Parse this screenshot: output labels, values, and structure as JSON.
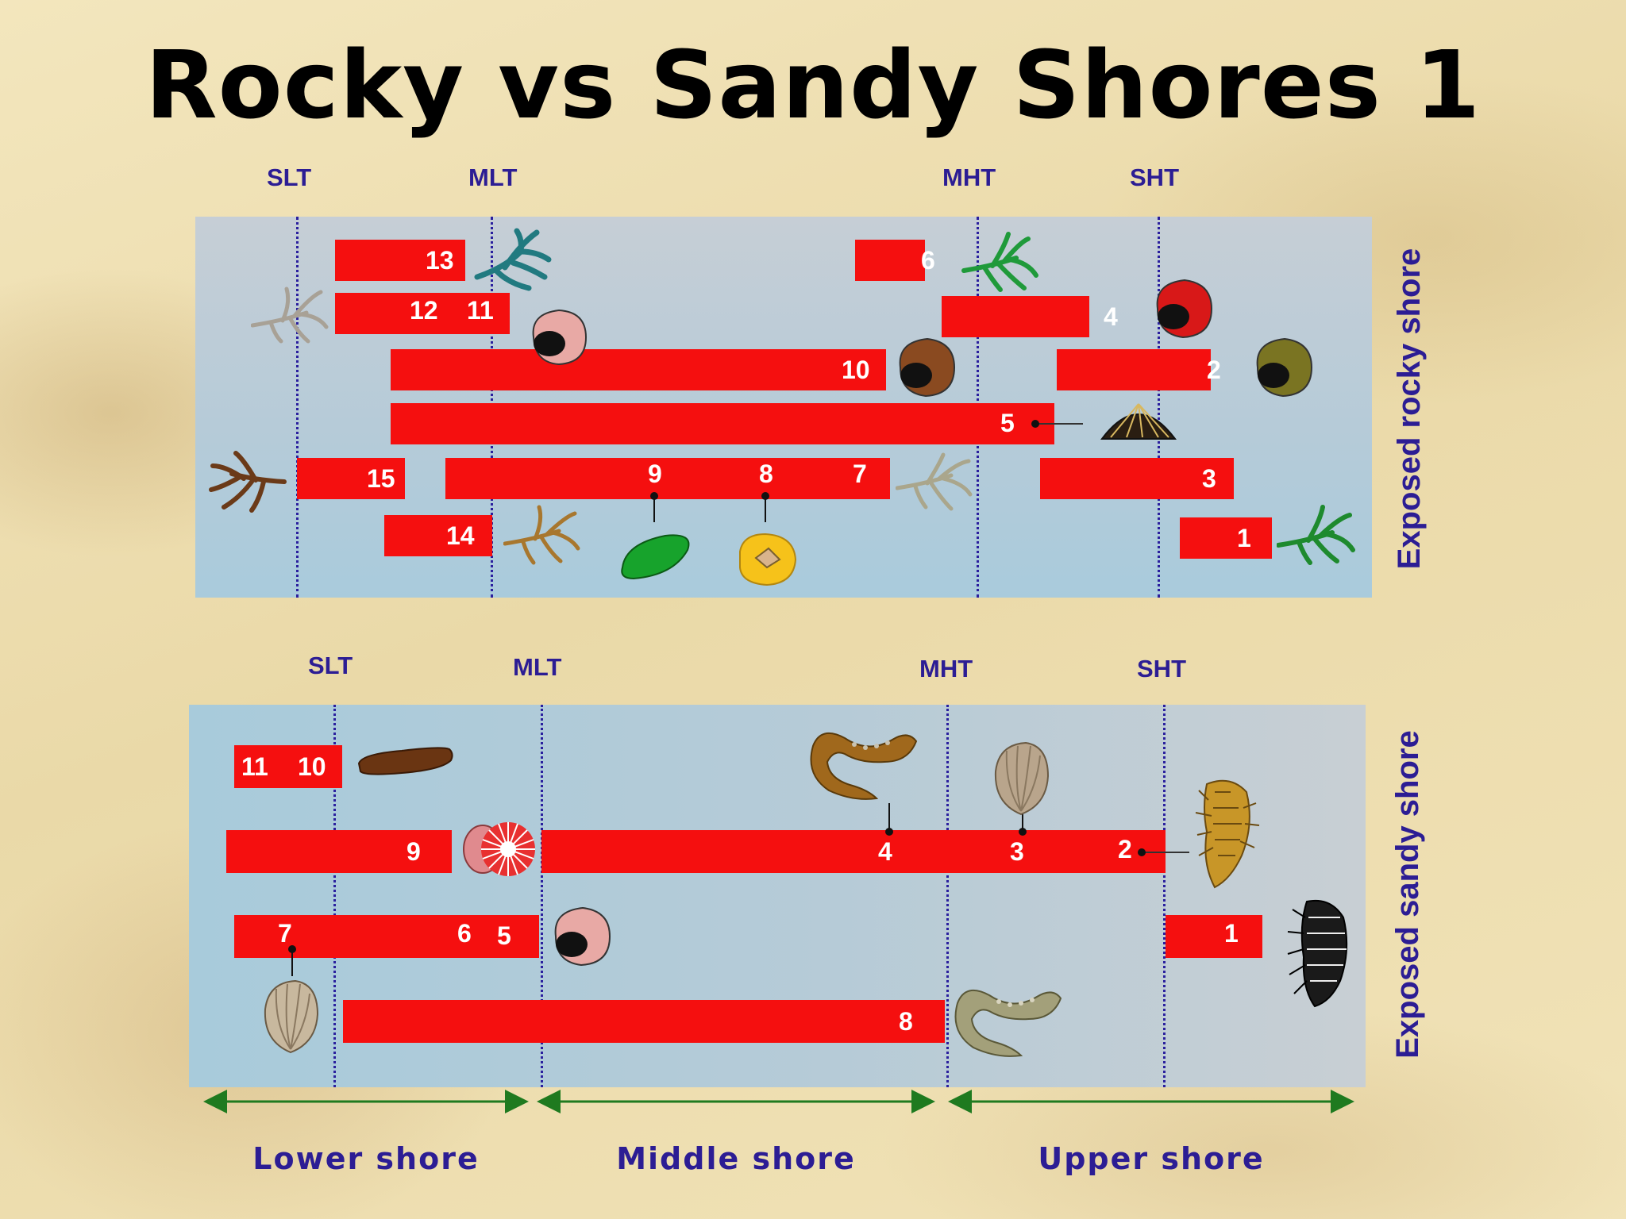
{
  "title": "Rocky vs Sandy Shores 1",
  "tides": {
    "slt": "SLT",
    "mlt": "MLT",
    "mht": "MHT",
    "sht": "SHT"
  },
  "rocky": {
    "label": "Exposed rocky shore",
    "numbers": {
      "n1": "1",
      "n2": "2",
      "n3": "3",
      "n4": "4",
      "n5": "5",
      "n6": "6",
      "n7": "7",
      "n8": "8",
      "n9": "9",
      "n10": "10",
      "n11": "11",
      "n12": "12",
      "n13": "13",
      "n14": "14",
      "n15": "15"
    }
  },
  "sandy": {
    "label": "Exposed sandy shore",
    "numbers": {
      "n1": "1",
      "n2": "2",
      "n3": "3",
      "n4": "4",
      "n5": "5",
      "n6": "6",
      "n7": "7",
      "n8": "8",
      "n9": "9",
      "n10": "10",
      "n11": "11"
    }
  },
  "zones": {
    "lower": "Lower shore",
    "middle": "Middle shore",
    "upper": "Upper shore"
  },
  "colors": {
    "bar": "#f50f0f",
    "tide_text": "#2c1d94",
    "arrow": "#1f7a1f"
  }
}
